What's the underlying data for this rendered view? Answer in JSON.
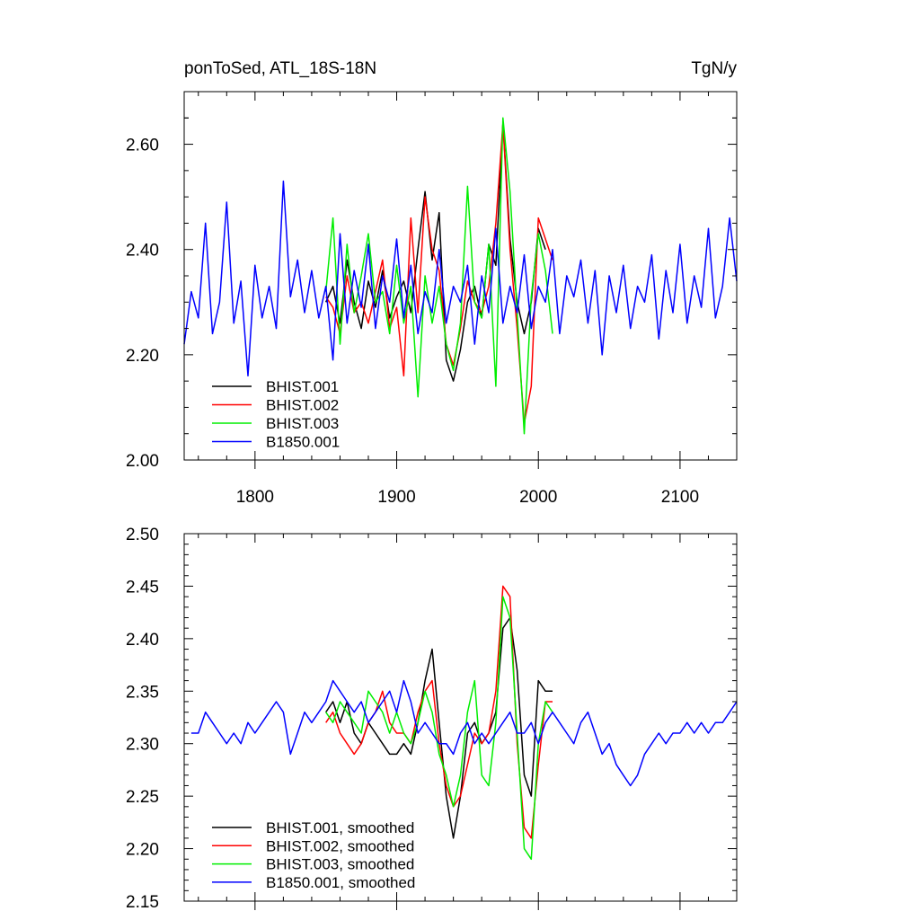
{
  "chart_data": [
    {
      "type": "line",
      "title_left": "ponToSed, ATL_18S-18N",
      "title_right": "TgN/y",
      "xlim": [
        1750,
        2140
      ],
      "ylim": [
        2.0,
        2.7
      ],
      "xticks": [
        1800,
        1900,
        2000,
        2100
      ],
      "xtick_labels": [
        "1800",
        "1900",
        "2000",
        "2100"
      ],
      "yticks": [
        2.0,
        2.2,
        2.4,
        2.6
      ],
      "ytick_labels": [
        "2.00",
        "2.20",
        "2.40",
        "2.60"
      ],
      "grid": false,
      "legend_position": "bottom-left",
      "series": [
        {
          "name": "BHIST.001",
          "color": "#000000",
          "x": [
            1850,
            1855,
            1860,
            1865,
            1870,
            1875,
            1880,
            1885,
            1890,
            1895,
            1900,
            1905,
            1910,
            1915,
            1920,
            1925,
            1930,
            1935,
            1940,
            1945,
            1950,
            1955,
            1960,
            1965,
            1970,
            1975,
            1980,
            1985,
            1990,
            1995,
            2000,
            2005
          ],
          "y": [
            2.3,
            2.33,
            2.26,
            2.38,
            2.3,
            2.25,
            2.34,
            2.29,
            2.36,
            2.27,
            2.31,
            2.34,
            2.28,
            2.4,
            2.51,
            2.38,
            2.47,
            2.19,
            2.15,
            2.21,
            2.3,
            2.33,
            2.27,
            2.41,
            2.37,
            2.64,
            2.42,
            2.3,
            2.24,
            2.3,
            2.44,
            2.4
          ]
        },
        {
          "name": "BHIST.002",
          "color": "#ff0000",
          "x": [
            1850,
            1855,
            1860,
            1865,
            1870,
            1875,
            1880,
            1885,
            1890,
            1895,
            1900,
            1905,
            1910,
            1915,
            1920,
            1925,
            1930,
            1935,
            1940,
            1945,
            1950,
            1955,
            1960,
            1965,
            1970,
            1975,
            1980,
            1985,
            1990,
            1995,
            2000,
            2005,
            2010
          ],
          "y": [
            2.31,
            2.29,
            2.24,
            2.35,
            2.28,
            2.3,
            2.26,
            2.32,
            2.38,
            2.25,
            2.29,
            2.16,
            2.46,
            2.28,
            2.5,
            2.4,
            2.36,
            2.22,
            2.18,
            2.25,
            2.34,
            2.3,
            2.28,
            2.33,
            2.45,
            2.64,
            2.4,
            2.25,
            2.07,
            2.14,
            2.46,
            2.42,
            2.38
          ]
        },
        {
          "name": "BHIST.003",
          "color": "#00ee00",
          "x": [
            1850,
            1855,
            1860,
            1865,
            1870,
            1875,
            1880,
            1885,
            1890,
            1895,
            1900,
            1905,
            1910,
            1915,
            1920,
            1925,
            1930,
            1935,
            1940,
            1945,
            1950,
            1955,
            1960,
            1965,
            1970,
            1975,
            1980,
            1985,
            1990,
            1995,
            2000,
            2005,
            2010
          ],
          "y": [
            2.32,
            2.46,
            2.22,
            2.41,
            2.28,
            2.35,
            2.43,
            2.3,
            2.32,
            2.24,
            2.37,
            2.26,
            2.33,
            2.12,
            2.35,
            2.26,
            2.33,
            2.22,
            2.17,
            2.26,
            2.52,
            2.3,
            2.27,
            2.41,
            2.14,
            2.65,
            2.51,
            2.28,
            2.05,
            2.31,
            2.43,
            2.36,
            2.24
          ]
        },
        {
          "name": "B1850.001",
          "color": "#0000ff",
          "x": [
            1750,
            1755,
            1760,
            1765,
            1770,
            1775,
            1780,
            1785,
            1790,
            1795,
            1800,
            1805,
            1810,
            1815,
            1820,
            1825,
            1830,
            1835,
            1840,
            1845,
            1850,
            1855,
            1860,
            1865,
            1870,
            1875,
            1880,
            1885,
            1890,
            1895,
            1900,
            1905,
            1910,
            1915,
            1920,
            1925,
            1930,
            1935,
            1940,
            1945,
            1950,
            1955,
            1960,
            1965,
            1970,
            1975,
            1980,
            1985,
            1990,
            1995,
            2000,
            2005,
            2010,
            2015,
            2020,
            2025,
            2030,
            2035,
            2040,
            2045,
            2050,
            2055,
            2060,
            2065,
            2070,
            2075,
            2080,
            2085,
            2090,
            2095,
            2100,
            2105,
            2110,
            2115,
            2120,
            2125,
            2130,
            2135,
            2140
          ],
          "y": [
            2.22,
            2.32,
            2.27,
            2.45,
            2.24,
            2.3,
            2.49,
            2.26,
            2.34,
            2.16,
            2.37,
            2.27,
            2.33,
            2.25,
            2.53,
            2.31,
            2.38,
            2.28,
            2.36,
            2.27,
            2.33,
            2.19,
            2.43,
            2.26,
            2.36,
            2.29,
            2.41,
            2.25,
            2.35,
            2.3,
            2.42,
            2.27,
            2.37,
            2.24,
            2.32,
            2.28,
            2.4,
            2.26,
            2.33,
            2.3,
            2.37,
            2.22,
            2.35,
            2.28,
            2.44,
            2.26,
            2.33,
            2.28,
            2.39,
            2.25,
            2.33,
            2.3,
            2.4,
            2.24,
            2.35,
            2.31,
            2.38,
            2.26,
            2.36,
            2.2,
            2.35,
            2.28,
            2.37,
            2.25,
            2.33,
            2.3,
            2.39,
            2.23,
            2.36,
            2.28,
            2.41,
            2.26,
            2.35,
            2.29,
            2.44,
            2.27,
            2.33,
            2.46,
            2.34
          ]
        }
      ]
    },
    {
      "type": "line",
      "xlim": [
        1750,
        2140
      ],
      "ylim": [
        2.15,
        2.5
      ],
      "xticks": [
        1800,
        1900,
        2000,
        2100
      ],
      "yticks": [
        2.15,
        2.2,
        2.25,
        2.3,
        2.35,
        2.4,
        2.45,
        2.5
      ],
      "ytick_labels": [
        "2.15",
        "2.20",
        "2.25",
        "2.30",
        "2.35",
        "2.40",
        "2.45",
        "2.50"
      ],
      "grid": false,
      "legend_position": "bottom-left",
      "series": [
        {
          "name": "BHIST.001, smoothed",
          "color": "#000000",
          "x": [
            1850,
            1855,
            1860,
            1865,
            1870,
            1875,
            1880,
            1885,
            1890,
            1895,
            1900,
            1905,
            1910,
            1915,
            1920,
            1925,
            1930,
            1935,
            1940,
            1945,
            1950,
            1955,
            1960,
            1965,
            1970,
            1975,
            1980,
            1985,
            1990,
            1995,
            2000,
            2005,
            2010
          ],
          "y": [
            2.33,
            2.34,
            2.32,
            2.34,
            2.31,
            2.3,
            2.32,
            2.31,
            2.3,
            2.29,
            2.29,
            2.3,
            2.29,
            2.32,
            2.36,
            2.39,
            2.32,
            2.25,
            2.21,
            2.25,
            2.31,
            2.32,
            2.3,
            2.31,
            2.33,
            2.41,
            2.42,
            2.37,
            2.27,
            2.25,
            2.36,
            2.35,
            2.35
          ]
        },
        {
          "name": "BHIST.002, smoothed",
          "color": "#ff0000",
          "x": [
            1850,
            1855,
            1860,
            1865,
            1870,
            1875,
            1880,
            1885,
            1890,
            1895,
            1900,
            1905,
            1910,
            1915,
            1920,
            1925,
            1930,
            1935,
            1940,
            1945,
            1950,
            1955,
            1960,
            1965,
            1970,
            1975,
            1980,
            1985,
            1990,
            1995,
            2000,
            2005,
            2010
          ],
          "y": [
            2.32,
            2.33,
            2.31,
            2.3,
            2.29,
            2.3,
            2.32,
            2.33,
            2.35,
            2.32,
            2.31,
            2.31,
            2.3,
            2.33,
            2.35,
            2.36,
            2.3,
            2.26,
            2.24,
            2.25,
            2.28,
            2.31,
            2.3,
            2.31,
            2.35,
            2.45,
            2.44,
            2.3,
            2.22,
            2.21,
            2.28,
            2.34,
            2.34
          ]
        },
        {
          "name": "BHIST.003, smoothed",
          "color": "#00ee00",
          "x": [
            1850,
            1855,
            1860,
            1865,
            1870,
            1875,
            1880,
            1885,
            1890,
            1895,
            1900,
            1905,
            1910,
            1915,
            1920,
            1925,
            1930,
            1935,
            1940,
            1945,
            1950,
            1955,
            1960,
            1965,
            1970,
            1975,
            1980,
            1985,
            1990,
            1995,
            2000,
            2005,
            2010
          ],
          "y": [
            2.33,
            2.32,
            2.34,
            2.33,
            2.32,
            2.31,
            2.35,
            2.34,
            2.33,
            2.31,
            2.33,
            2.31,
            2.3,
            2.32,
            2.35,
            2.33,
            2.29,
            2.27,
            2.24,
            2.27,
            2.33,
            2.36,
            2.27,
            2.26,
            2.32,
            2.44,
            2.42,
            2.31,
            2.2,
            2.19,
            2.3,
            2.34,
            2.33
          ]
        },
        {
          "name": "B1850.001, smoothed",
          "color": "#0000ff",
          "x": [
            1755,
            1760,
            1765,
            1770,
            1775,
            1780,
            1785,
            1790,
            1795,
            1800,
            1805,
            1810,
            1815,
            1820,
            1825,
            1830,
            1835,
            1840,
            1845,
            1850,
            1855,
            1860,
            1865,
            1870,
            1875,
            1880,
            1885,
            1890,
            1895,
            1900,
            1905,
            1910,
            1915,
            1920,
            1925,
            1930,
            1935,
            1940,
            1945,
            1950,
            1955,
            1960,
            1965,
            1970,
            1975,
            1980,
            1985,
            1990,
            1995,
            2000,
            2005,
            2010,
            2015,
            2020,
            2025,
            2030,
            2035,
            2040,
            2045,
            2050,
            2055,
            2060,
            2065,
            2070,
            2075,
            2080,
            2085,
            2090,
            2095,
            2100,
            2105,
            2110,
            2115,
            2120,
            2125,
            2130,
            2135,
            2140
          ],
          "y": [
            2.31,
            2.31,
            2.33,
            2.32,
            2.31,
            2.3,
            2.31,
            2.3,
            2.32,
            2.31,
            2.32,
            2.33,
            2.34,
            2.33,
            2.29,
            2.31,
            2.33,
            2.32,
            2.33,
            2.34,
            2.36,
            2.35,
            2.34,
            2.33,
            2.34,
            2.32,
            2.33,
            2.34,
            2.35,
            2.33,
            2.36,
            2.34,
            2.31,
            2.32,
            2.31,
            2.3,
            2.3,
            2.29,
            2.31,
            2.32,
            2.3,
            2.31,
            2.3,
            2.31,
            2.32,
            2.33,
            2.31,
            2.31,
            2.32,
            2.3,
            2.32,
            2.33,
            2.32,
            2.31,
            2.3,
            2.32,
            2.33,
            2.31,
            2.29,
            2.3,
            2.28,
            2.27,
            2.26,
            2.27,
            2.29,
            2.3,
            2.31,
            2.3,
            2.31,
            2.31,
            2.32,
            2.31,
            2.32,
            2.31,
            2.32,
            2.32,
            2.33,
            2.34
          ]
        }
      ]
    }
  ]
}
